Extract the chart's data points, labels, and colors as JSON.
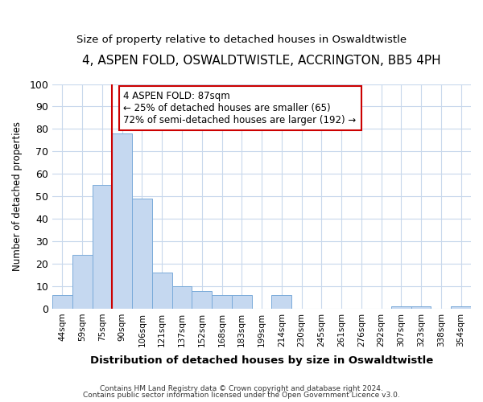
{
  "title1": "4, ASPEN FOLD, OSWALDTWISTLE, ACCRINGTON, BB5 4PH",
  "title2": "Size of property relative to detached houses in Oswaldtwistle",
  "xlabel": "Distribution of detached houses by size in Oswaldtwistle",
  "ylabel": "Number of detached properties",
  "categories": [
    "44sqm",
    "59sqm",
    "75sqm",
    "90sqm",
    "106sqm",
    "121sqm",
    "137sqm",
    "152sqm",
    "168sqm",
    "183sqm",
    "199sqm",
    "214sqm",
    "230sqm",
    "245sqm",
    "261sqm",
    "276sqm",
    "292sqm",
    "307sqm",
    "323sqm",
    "338sqm",
    "354sqm"
  ],
  "values": [
    6,
    24,
    55,
    78,
    49,
    16,
    10,
    8,
    6,
    6,
    0,
    6,
    0,
    0,
    0,
    0,
    0,
    1,
    1,
    0,
    1
  ],
  "bar_color": "#c5d8f0",
  "bar_edge_color": "#7aabda",
  "ylim": [
    0,
    100
  ],
  "yticks": [
    0,
    10,
    20,
    30,
    40,
    50,
    60,
    70,
    80,
    90,
    100
  ],
  "property_label": "4 ASPEN FOLD: 87sqm",
  "annotation_line1": "← 25% of detached houses are smaller (65)",
  "annotation_line2": "72% of semi-detached houses are larger (192) →",
  "red_line_x": 2.5,
  "footnote1": "Contains HM Land Registry data © Crown copyright and database right 2024.",
  "footnote2": "Contains public sector information licensed under the Open Government Licence v3.0.",
  "background_color": "#ffffff",
  "plot_bg_color": "#ffffff",
  "grid_color": "#c8d8ec",
  "annotation_box_color": "#ffffff",
  "annotation_box_edge": "#cc0000",
  "title1_fontsize": 11,
  "title2_fontsize": 9.5
}
